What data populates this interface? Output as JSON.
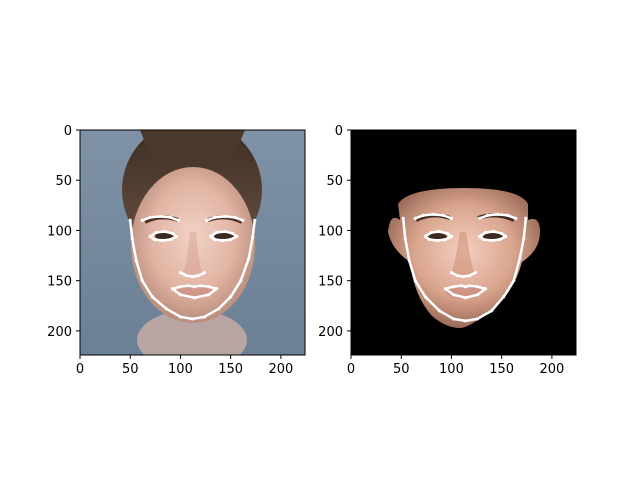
{
  "chart_data": [
    {
      "type": "image",
      "title": "",
      "xlabel": "",
      "ylabel": "",
      "xlim": [
        0,
        224
      ],
      "ylim": [
        224,
        0
      ],
      "xticks": [
        0,
        50,
        100,
        150,
        200
      ],
      "yticks": [
        0,
        50,
        100,
        150,
        200
      ],
      "background": "#6f8296",
      "annotation_color": "#ffffff",
      "landmarks": {
        "jaw": [
          [
            50,
            90
          ],
          [
            52,
            108
          ],
          [
            56,
            130
          ],
          [
            62,
            150
          ],
          [
            72,
            166
          ],
          [
            86,
            178
          ],
          [
            100,
            186
          ],
          [
            112,
            188
          ],
          [
            124,
            186
          ],
          [
            138,
            178
          ],
          [
            150,
            166
          ],
          [
            160,
            150
          ],
          [
            168,
            128
          ],
          [
            172,
            106
          ],
          [
            174,
            90
          ]
        ],
        "left_brow": [
          [
            62,
            90
          ],
          [
            70,
            87
          ],
          [
            80,
            86
          ],
          [
            90,
            87
          ],
          [
            98,
            90
          ]
        ],
        "right_brow": [
          [
            126,
            90
          ],
          [
            134,
            87
          ],
          [
            144,
            86
          ],
          [
            154,
            87
          ],
          [
            162,
            90
          ]
        ],
        "left_eye": [
          [
            70,
            106
          ],
          [
            76,
            102
          ],
          [
            84,
            101
          ],
          [
            92,
            103
          ],
          [
            96,
            106
          ],
          [
            90,
            109
          ],
          [
            82,
            110
          ],
          [
            74,
            109
          ]
        ],
        "right_eye": [
          [
            130,
            106
          ],
          [
            136,
            102
          ],
          [
            144,
            101
          ],
          [
            152,
            103
          ],
          [
            156,
            106
          ],
          [
            150,
            109
          ],
          [
            142,
            110
          ],
          [
            134,
            109
          ]
        ],
        "nose": [
          [
            100,
            142
          ],
          [
            106,
            145
          ],
          [
            112,
            146
          ],
          [
            118,
            145
          ],
          [
            124,
            142
          ]
        ],
        "mouth": [
          [
            92,
            158
          ],
          [
            100,
            156
          ],
          [
            108,
            155
          ],
          [
            114,
            156
          ],
          [
            120,
            155
          ],
          [
            128,
            156
          ],
          [
            136,
            158
          ],
          [
            128,
            164
          ],
          [
            114,
            167
          ],
          [
            100,
            164
          ]
        ]
      }
    },
    {
      "type": "image",
      "title": "",
      "xlabel": "",
      "ylabel": "",
      "xlim": [
        0,
        224
      ],
      "ylim": [
        224,
        0
      ],
      "xticks": [
        0,
        50,
        100,
        150,
        200
      ],
      "yticks": [
        0,
        50,
        100,
        150,
        200
      ],
      "background": "#000000",
      "annotation_color": "#ffffff",
      "landmarks": {
        "jaw": [
          [
            52,
            88
          ],
          [
            54,
            108
          ],
          [
            58,
            130
          ],
          [
            64,
            150
          ],
          [
            74,
            166
          ],
          [
            88,
            180
          ],
          [
            102,
            188
          ],
          [
            114,
            190
          ],
          [
            126,
            188
          ],
          [
            140,
            180
          ],
          [
            152,
            166
          ],
          [
            162,
            150
          ],
          [
            168,
            128
          ],
          [
            172,
            108
          ],
          [
            174,
            88
          ]
        ],
        "left_brow": [
          [
            64,
            88
          ],
          [
            72,
            85
          ],
          [
            82,
            84
          ],
          [
            92,
            85
          ],
          [
            100,
            88
          ]
        ],
        "right_brow": [
          [
            128,
            88
          ],
          [
            136,
            85
          ],
          [
            146,
            84
          ],
          [
            156,
            85
          ],
          [
            164,
            88
          ]
        ],
        "left_eye": [
          [
            74,
            106
          ],
          [
            80,
            102
          ],
          [
            88,
            101
          ],
          [
            96,
            103
          ],
          [
            100,
            106
          ],
          [
            94,
            109
          ],
          [
            86,
            110
          ],
          [
            78,
            109
          ]
        ],
        "right_eye": [
          [
            128,
            106
          ],
          [
            134,
            102
          ],
          [
            142,
            101
          ],
          [
            150,
            103
          ],
          [
            154,
            106
          ],
          [
            148,
            109
          ],
          [
            140,
            110
          ],
          [
            132,
            109
          ]
        ],
        "nose": [
          [
            100,
            142
          ],
          [
            106,
            145
          ],
          [
            112,
            146
          ],
          [
            118,
            145
          ],
          [
            124,
            142
          ]
        ],
        "mouth": [
          [
            94,
            158
          ],
          [
            102,
            156
          ],
          [
            110,
            155
          ],
          [
            114,
            156
          ],
          [
            118,
            155
          ],
          [
            126,
            156
          ],
          [
            134,
            158
          ],
          [
            126,
            164
          ],
          [
            114,
            167
          ],
          [
            102,
            164
          ]
        ]
      }
    }
  ]
}
